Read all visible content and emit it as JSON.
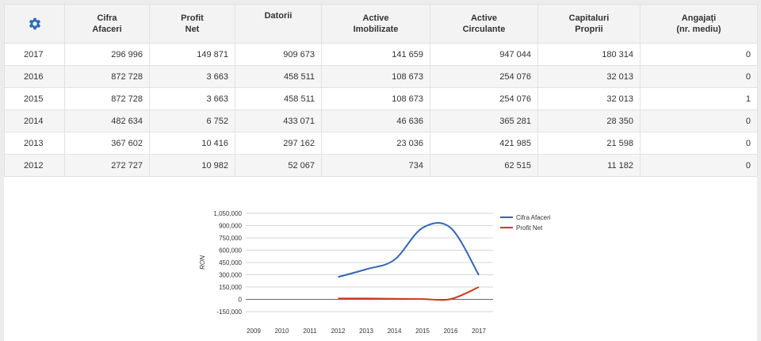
{
  "table": {
    "settings_icon": "gear-icon",
    "headers": [
      {
        "l1": "Cifra",
        "l2": "Afaceri"
      },
      {
        "l1": "Profit",
        "l2": "Net"
      },
      {
        "l1": "Datorii",
        "l2": ""
      },
      {
        "l1": "Active",
        "l2": "Imobilizate"
      },
      {
        "l1": "Active",
        "l2": "Circulante"
      },
      {
        "l1": "Capitaluri",
        "l2": "Proprii"
      },
      {
        "l1": "Angajați",
        "l2": "(nr. mediu)"
      }
    ],
    "rows": [
      {
        "year": "2017",
        "v": [
          "296 996",
          "149 871",
          "909 673",
          "141 659",
          "947 044",
          "180 314",
          "0"
        ]
      },
      {
        "year": "2016",
        "v": [
          "872 728",
          "3 663",
          "458 511",
          "108 673",
          "254 076",
          "32 013",
          "0"
        ]
      },
      {
        "year": "2015",
        "v": [
          "872 728",
          "3 663",
          "458 511",
          "108 673",
          "254 076",
          "32 013",
          "1"
        ]
      },
      {
        "year": "2014",
        "v": [
          "482 634",
          "6 752",
          "433 071",
          "46 636",
          "365 281",
          "28 350",
          "0"
        ]
      },
      {
        "year": "2013",
        "v": [
          "367 602",
          "10 416",
          "297 162",
          "23 036",
          "421 985",
          "21 598",
          "0"
        ]
      },
      {
        "year": "2012",
        "v": [
          "272 727",
          "10 982",
          "52 067",
          "734",
          "62 515",
          "11 182",
          "0"
        ]
      }
    ]
  },
  "chart_data": {
    "type": "line",
    "ylabel": "RON",
    "xlabel": "",
    "title": "",
    "categories": [
      "2009",
      "2010",
      "2011",
      "2012",
      "2013",
      "2014",
      "2015",
      "2016",
      "2017"
    ],
    "ylim": [
      -150000,
      1050000
    ],
    "yticks": [
      1050000,
      900000,
      750000,
      600000,
      450000,
      300000,
      150000,
      0,
      -150000
    ],
    "ytick_labels": [
      "1,050,000",
      "900,000",
      "750,000",
      "600,000",
      "450,000",
      "300,000",
      "150,000",
      "0",
      "-150,000"
    ],
    "grid": true,
    "legend_position": "top-right",
    "series": [
      {
        "name": "Cifra Afaceri",
        "color": "#3366b5",
        "values": [
          null,
          null,
          null,
          272727,
          367602,
          482634,
          872728,
          872728,
          296996
        ]
      },
      {
        "name": "Profit Net",
        "color": "#cc3b1f",
        "values": [
          null,
          null,
          null,
          10982,
          10416,
          6752,
          3663,
          3663,
          149871
        ]
      }
    ]
  }
}
